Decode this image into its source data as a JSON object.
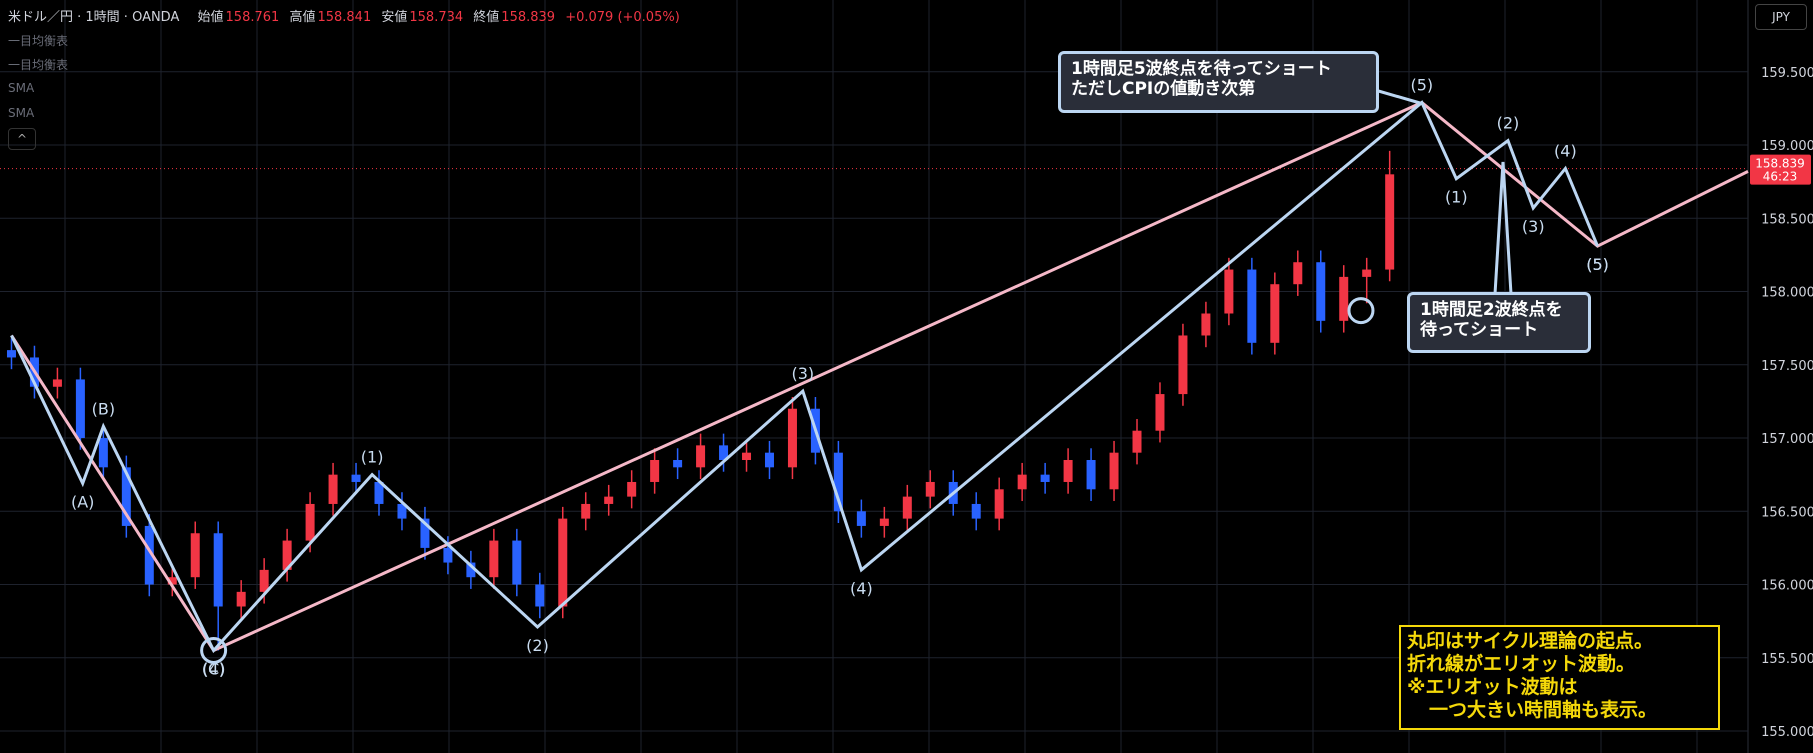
{
  "header": {
    "symbol": "米ドル／円 · 1時間 · OANDA",
    "open_label": "始値",
    "open": "158.761",
    "high_label": "高値",
    "high": "158.841",
    "low_label": "安値",
    "low": "158.734",
    "close_label": "終値",
    "change": "+0.079 (+0.05%)",
    "indicators": [
      "一目均衡表",
      "一目均衡表",
      "SMA",
      "SMA"
    ],
    "currency": "JPY"
  },
  "chart_data": {
    "type": "candlestick",
    "up_color": "#f23645",
    "down_color": "#2962ff",
    "xlim": [
      -0.5,
      75.6
    ],
    "ylim": [
      154.85,
      159.99
    ],
    "yticks": [
      {
        "value": 155.0,
        "label": "155.000"
      },
      {
        "value": 155.5,
        "label": "155.500"
      },
      {
        "value": 156.0,
        "label": "156.000"
      },
      {
        "value": 156.5,
        "label": "156.500"
      },
      {
        "value": 157.0,
        "label": "157.000"
      },
      {
        "value": 157.5,
        "label": "157.500"
      },
      {
        "value": 158.0,
        "label": "158.000"
      },
      {
        "value": 158.5,
        "label": "158.500"
      },
      {
        "value": 159.0,
        "label": "159.000"
      },
      {
        "value": 159.5,
        "label": "159.500"
      }
    ],
    "grid": true,
    "last_price": 158.839,
    "countdown": "46:23",
    "series": [
      {
        "open": [
          157.6,
          157.55,
          157.35,
          157.4,
          157.0,
          156.8,
          156.4,
          156.0,
          156.05,
          156.35,
          155.85,
          155.95,
          156.1,
          156.3,
          156.55,
          156.75,
          156.7,
          156.55,
          156.45,
          156.25,
          156.15,
          156.05,
          156.3,
          156.0,
          155.85,
          156.45,
          156.55,
          156.6,
          156.7,
          156.85,
          156.8,
          156.95,
          156.85,
          156.9,
          156.8,
          157.2,
          156.9,
          156.5,
          156.4,
          156.45,
          156.6,
          156.7,
          156.55,
          156.45,
          156.65,
          156.75,
          156.7,
          156.85,
          156.65,
          156.9,
          157.05,
          157.3,
          157.7,
          157.85,
          158.15,
          157.65,
          158.05,
          158.2,
          157.8,
          158.1,
          158.15
        ],
        "high": [
          157.68,
          157.63,
          157.48,
          157.48,
          157.08,
          156.88,
          156.48,
          156.13,
          156.43,
          156.43,
          156.03,
          156.18,
          156.38,
          156.63,
          156.83,
          156.83,
          156.78,
          156.63,
          156.53,
          156.33,
          156.23,
          156.38,
          156.38,
          156.08,
          156.53,
          156.63,
          156.68,
          156.78,
          156.93,
          156.93,
          157.03,
          157.03,
          156.98,
          156.98,
          157.28,
          157.28,
          156.98,
          156.58,
          156.53,
          156.68,
          156.78,
          156.78,
          156.63,
          156.73,
          156.83,
          156.83,
          156.93,
          156.93,
          156.98,
          157.13,
          157.38,
          157.78,
          157.93,
          158.23,
          158.23,
          158.13,
          158.28,
          158.28,
          158.18,
          158.23,
          158.96
        ],
        "low": [
          157.47,
          157.27,
          157.27,
          156.92,
          156.72,
          156.32,
          155.92,
          155.92,
          155.97,
          155.55,
          155.77,
          155.87,
          156.02,
          156.22,
          156.47,
          156.62,
          156.47,
          156.37,
          156.17,
          156.07,
          155.97,
          155.97,
          155.92,
          155.77,
          155.77,
          156.37,
          156.47,
          156.52,
          156.62,
          156.72,
          156.72,
          156.77,
          156.77,
          156.72,
          156.72,
          156.82,
          156.42,
          156.32,
          156.32,
          156.37,
          156.52,
          156.47,
          156.37,
          156.37,
          156.57,
          156.62,
          156.62,
          156.57,
          156.57,
          156.82,
          156.97,
          157.22,
          157.62,
          157.77,
          157.57,
          157.57,
          157.97,
          157.72,
          157.72,
          157.92,
          158.07
        ],
        "close": [
          157.55,
          157.35,
          157.4,
          157.0,
          156.8,
          156.4,
          156.0,
          156.05,
          156.35,
          155.85,
          155.95,
          156.1,
          156.3,
          156.55,
          156.75,
          156.7,
          156.55,
          156.45,
          156.25,
          156.15,
          156.05,
          156.3,
          156.0,
          155.85,
          156.45,
          156.55,
          156.6,
          156.7,
          156.85,
          156.8,
          156.95,
          156.85,
          156.9,
          156.8,
          157.2,
          156.9,
          156.5,
          156.4,
          156.45,
          156.6,
          156.7,
          156.55,
          156.45,
          156.65,
          156.75,
          156.7,
          156.85,
          156.65,
          156.9,
          157.05,
          157.3,
          157.7,
          157.85,
          158.15,
          157.65,
          158.05,
          158.2,
          157.8,
          158.1,
          158.15,
          158.8
        ]
      }
    ],
    "overlays": [
      {
        "color": "#bcd6f2",
        "x": [
          0,
          3.1,
          4,
          8.8,
          15.7,
          22.9,
          34.45,
          37,
          61.4,
          62.9,
          65.15,
          66.25,
          67.65,
          69.05
        ],
        "values": [
          157.7,
          156.69,
          157.08,
          155.55,
          156.75,
          155.71,
          157.32,
          156.1,
          159.29,
          158.77,
          159.03,
          158.57,
          158.84,
          158.31
        ],
        "labels": [
          null,
          "(A)",
          "(B)",
          "(C)",
          "(1)",
          "(2)",
          "(3)",
          "(4)",
          "(5)",
          "(1)",
          "(2)",
          "(3)",
          "(4)",
          "(5)"
        ]
      },
      {
        "color": "#f5b8c8",
        "x": [
          0,
          8.8,
          61.4,
          69.05,
          75.6
        ],
        "values": [
          157.7,
          155.55,
          159.29,
          158.31,
          158.82
        ],
        "labels": [
          null,
          "(4)",
          null,
          "(5)",
          null
        ]
      }
    ],
    "cycle_points": {
      "x": [
        8.8,
        58.75
      ],
      "values": [
        155.55,
        157.87
      ]
    },
    "callouts": [
      [
        "1時間足5波終点を待ってショート",
        "ただしCPIの値動き次第"
      ],
      [
        "1時間足2波終点を",
        "待ってショート"
      ]
    ],
    "note": [
      "丸印はサイクル理論の起点。",
      "折れ線がエリオット波動。",
      "※エリオット波動は",
      "一つ大きい時間軸も表示。"
    ]
  }
}
